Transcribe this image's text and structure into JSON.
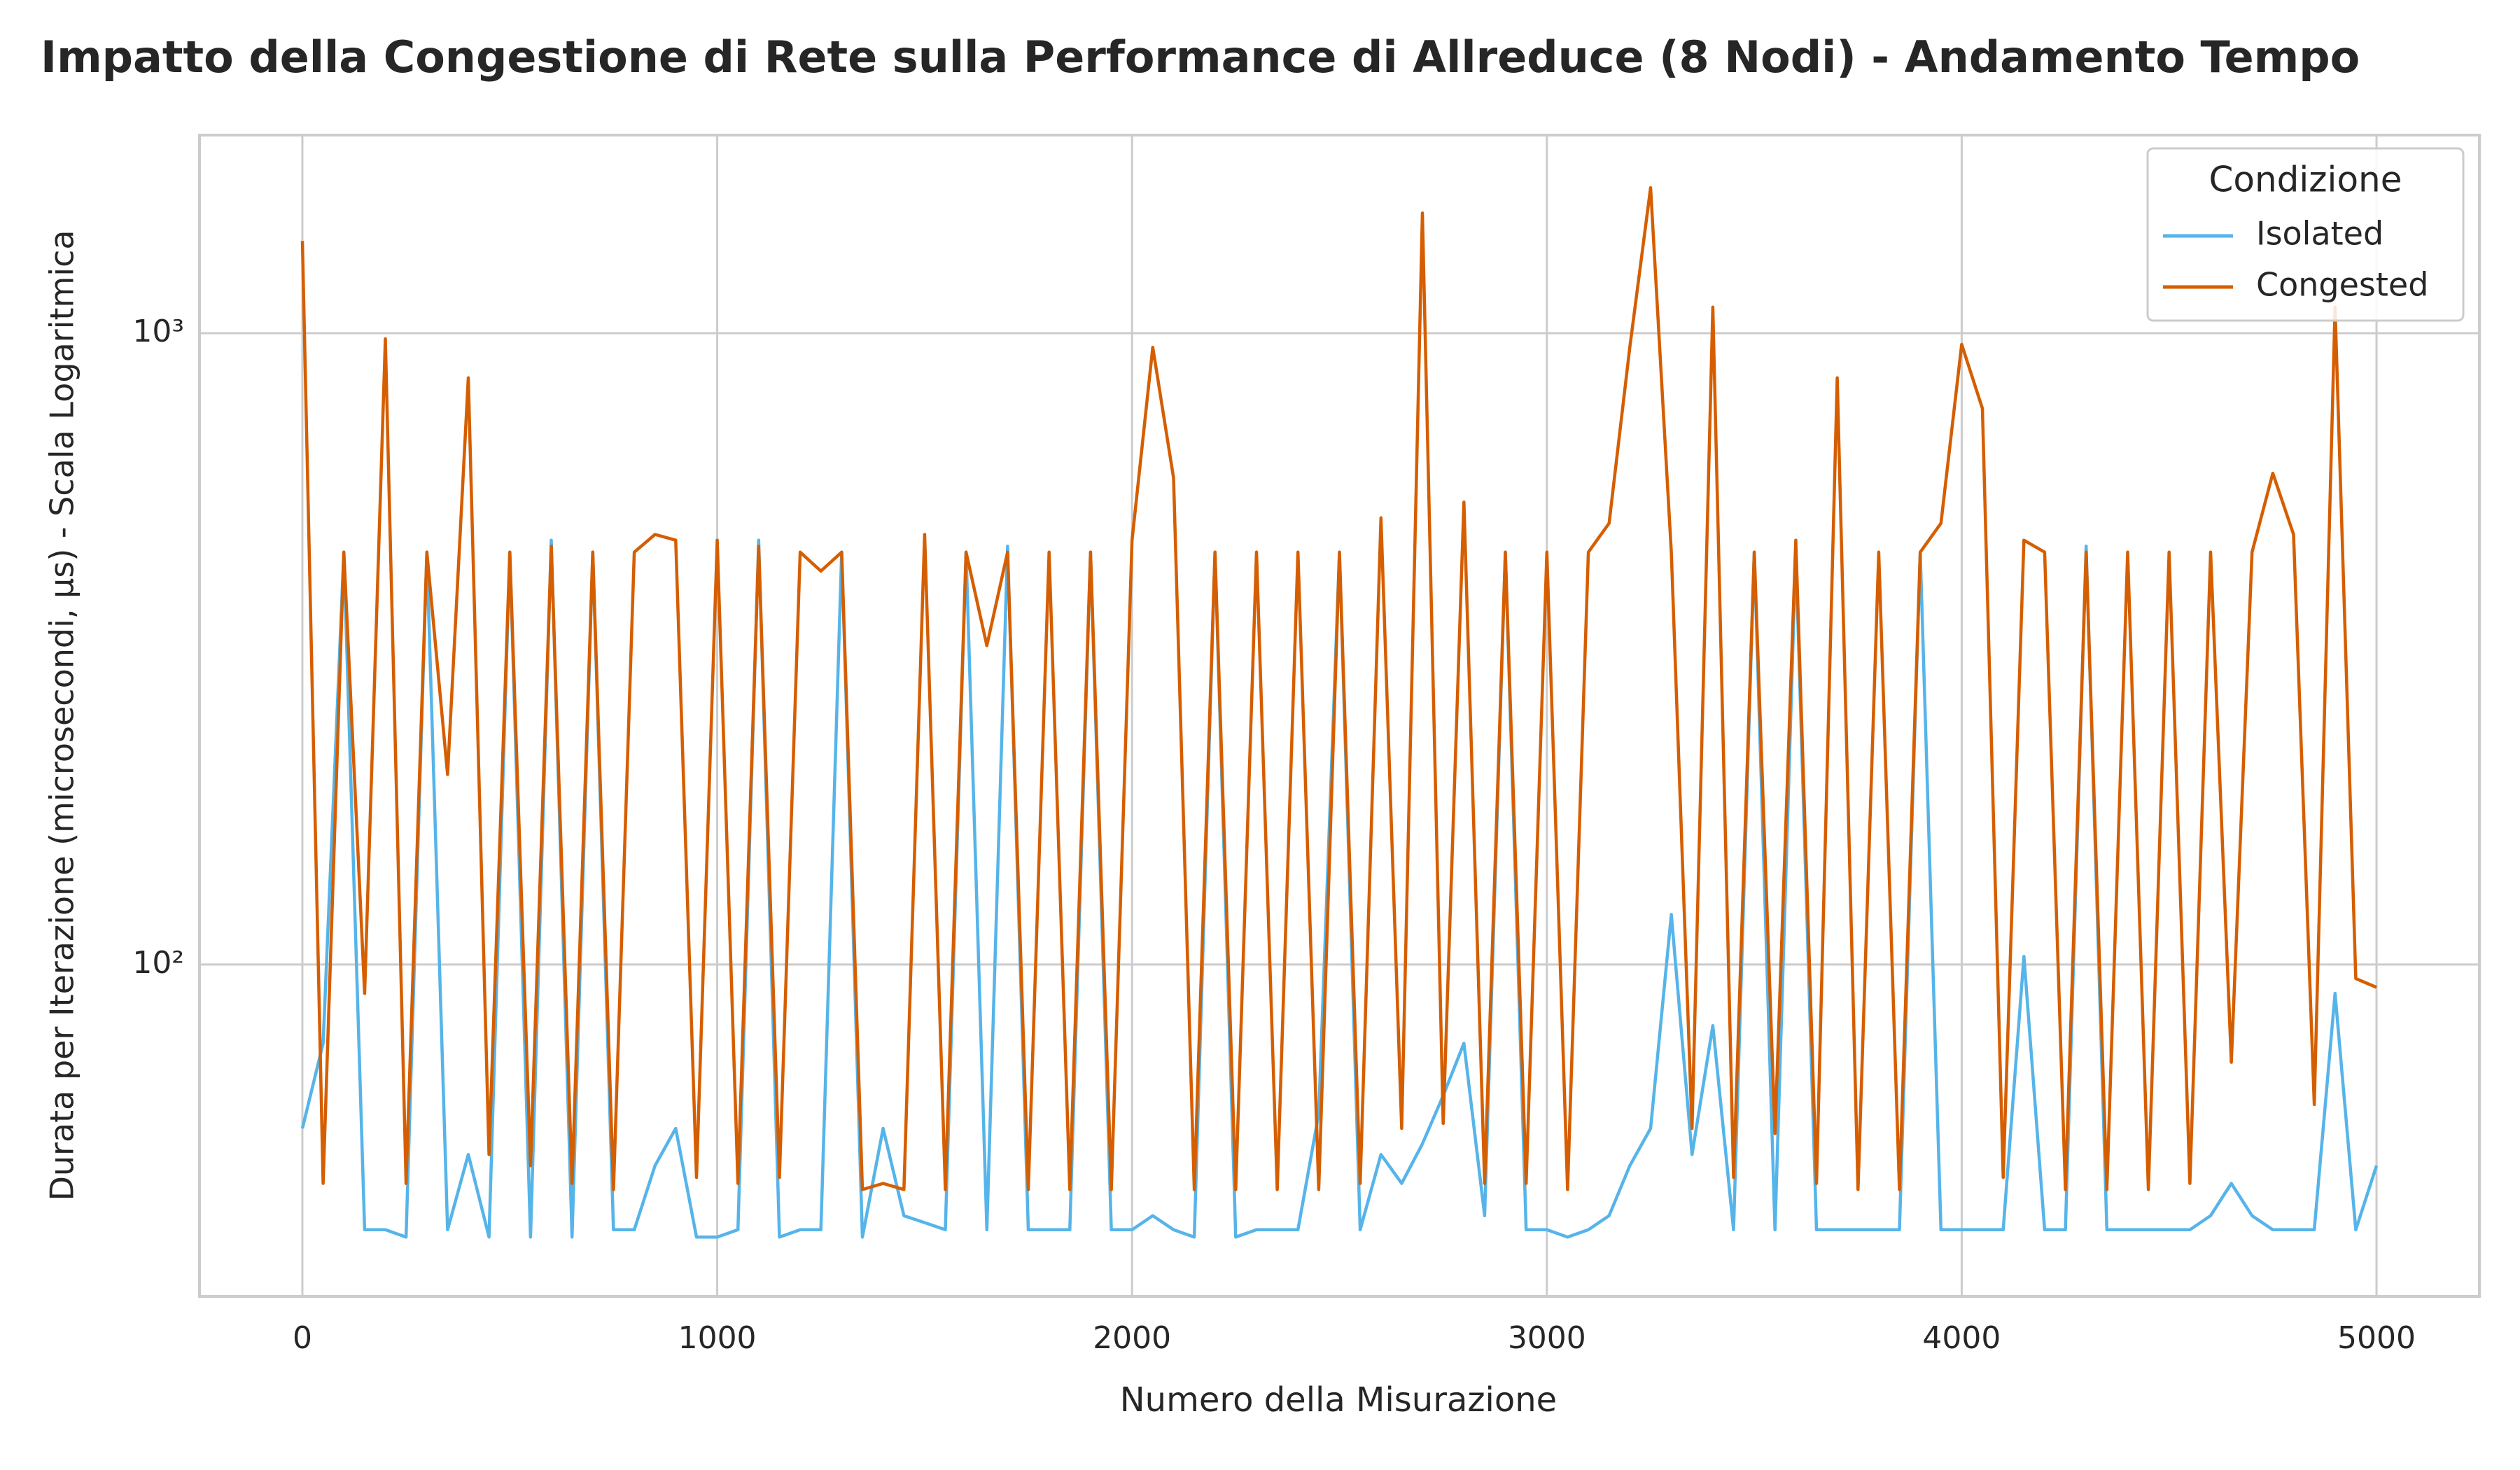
{
  "chart_data": {
    "type": "line",
    "title": "Impatto della Congestione di Rete sulla Performance di Allreduce (8 Nodi) - Andamento Tempo",
    "x_label": "Numero della Misurazione",
    "y_label": "Durata per Iterazione (microsecondi, µs) - Scala Logaritmica",
    "legend_title": "Condizione",
    "legend_position": "upper right",
    "log_y": true,
    "grid": true,
    "xlim": [
      -248,
      5248
    ],
    "ylim": [
      29.8,
      2060
    ],
    "xticks": [
      0,
      1000,
      2000,
      3000,
      4000,
      5000
    ],
    "yticks": [
      {
        "value": 100,
        "label": "10²"
      },
      {
        "value": 1000,
        "label": "10³"
      }
    ],
    "x": [
      0,
      50,
      100,
      150,
      200,
      250,
      300,
      350,
      400,
      450,
      500,
      550,
      600,
      650,
      700,
      750,
      800,
      850,
      900,
      950,
      1000,
      1050,
      1100,
      1150,
      1200,
      1250,
      1300,
      1350,
      1400,
      1450,
      1500,
      1550,
      1600,
      1650,
      1700,
      1750,
      1800,
      1850,
      1900,
      1950,
      2000,
      2050,
      2100,
      2150,
      2200,
      2250,
      2300,
      2350,
      2400,
      2450,
      2500,
      2550,
      2600,
      2650,
      2700,
      2750,
      2800,
      2850,
      2900,
      2950,
      3000,
      3050,
      3100,
      3150,
      3200,
      3250,
      3300,
      3350,
      3400,
      3450,
      3500,
      3550,
      3600,
      3650,
      3700,
      3750,
      3800,
      3850,
      3900,
      3950,
      4000,
      4050,
      4100,
      4150,
      4200,
      4250,
      4300,
      4350,
      4400,
      4450,
      4500,
      4550,
      4600,
      4650,
      4700,
      4750,
      4800,
      4850,
      4900,
      4950,
      5000
    ],
    "series": [
      {
        "name": "Isolated",
        "color": "#56b4e9",
        "values": [
          55,
          75,
          450,
          38,
          38,
          37,
          450,
          38,
          50,
          37,
          450,
          37,
          470,
          37,
          450,
          38,
          38,
          48,
          55,
          37,
          37,
          38,
          470,
          37,
          38,
          38,
          450,
          37,
          55,
          40,
          39,
          38,
          450,
          38,
          460,
          38,
          38,
          38,
          450,
          38,
          38,
          40,
          38,
          37,
          450,
          37,
          38,
          38,
          38,
          58,
          450,
          38,
          50,
          45,
          52,
          62,
          75,
          40,
          450,
          38,
          38,
          37,
          38,
          40,
          48,
          55,
          120,
          50,
          80,
          38,
          450,
          38,
          450,
          38,
          38,
          38,
          38,
          38,
          450,
          38,
          38,
          38,
          38,
          103,
          38,
          38,
          460,
          38,
          38,
          38,
          38,
          38,
          40,
          45,
          40,
          38,
          38,
          38,
          90,
          38,
          48
        ]
      },
      {
        "name": "Congested",
        "color": "#d55e00",
        "values": [
          1400,
          45,
          450,
          90,
          980,
          45,
          450,
          200,
          850,
          50,
          450,
          48,
          460,
          45,
          450,
          44,
          450,
          480,
          470,
          46,
          470,
          45,
          460,
          46,
          450,
          420,
          450,
          44,
          45,
          44,
          480,
          44,
          450,
          320,
          450,
          44,
          450,
          44,
          450,
          44,
          470,
          950,
          590,
          44,
          450,
          44,
          450,
          44,
          450,
          44,
          450,
          45,
          510,
          55,
          1550,
          56,
          540,
          45,
          450,
          45,
          450,
          44,
          450,
          500,
          950,
          1700,
          450,
          55,
          1100,
          46,
          450,
          54,
          470,
          45,
          850,
          44,
          450,
          44,
          450,
          500,
          960,
          760,
          46,
          470,
          450,
          44,
          450,
          44,
          450,
          44,
          450,
          45,
          450,
          70,
          450,
          600,
          480,
          60,
          1100,
          95,
          92
        ]
      }
    ]
  }
}
